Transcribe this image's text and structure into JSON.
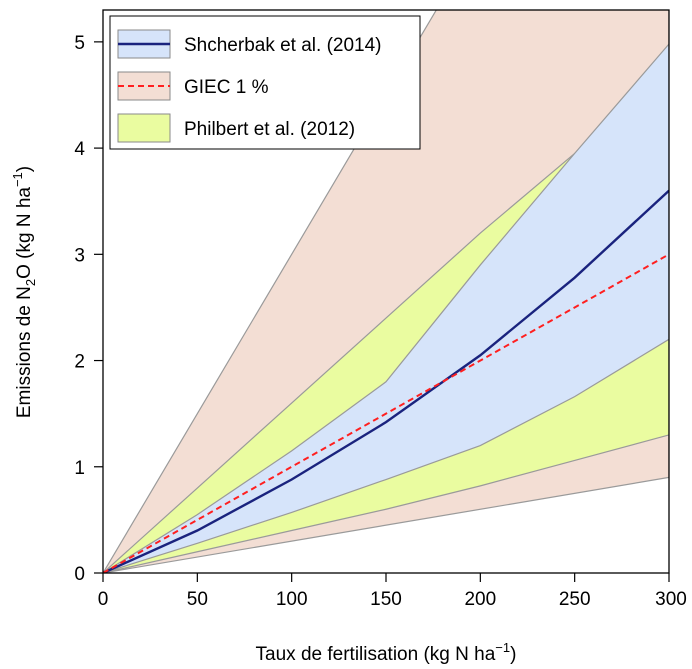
{
  "chart_data": {
    "type": "area",
    "xlabel": "Taux de fertilisation (kg N ha",
    "xlabel_sup": "−1",
    "xlabel_end": ")",
    "ylabel": "Emissions de N",
    "ylabel_sub": "2",
    "ylabel_mid": "O (kg N ha",
    "ylabel_sup": "−1",
    "ylabel_end": ")",
    "xlim": [
      0,
      300
    ],
    "ylim": [
      0,
      5.3
    ],
    "x_ticks": [
      0,
      50,
      100,
      150,
      200,
      250,
      300
    ],
    "x_tick_labels": [
      "0",
      "50",
      "100",
      "150",
      "200",
      "250",
      "300"
    ],
    "y_ticks": [
      0,
      1,
      2,
      3,
      4,
      5
    ],
    "y_tick_labels": [
      "0",
      "1",
      "2",
      "3",
      "4",
      "5"
    ],
    "grid": false,
    "legend_position": "top-left",
    "legend": [
      {
        "label": "Shcherbak et al. (2014)",
        "kind": "line-band",
        "fill": "#d6e4fa",
        "line": "#1a237e"
      },
      {
        "label": "GIEC 1 %",
        "kind": "dashed-band",
        "fill": "#f3ded4",
        "line": "#ff1f1f"
      },
      {
        "label": "Philbert et al. (2012)",
        "kind": "band",
        "fill": "#eafca0"
      }
    ],
    "series": [
      {
        "name": "GIEC 1 %",
        "kind": "band",
        "fill": "#f3ded4",
        "x": [
          0,
          300
        ],
        "lower": [
          0,
          0.9
        ],
        "upper": [
          0,
          9.0
        ]
      },
      {
        "name": "Philbert et al. (2012)",
        "kind": "band",
        "fill": "#eafca0",
        "x": [
          0,
          50,
          100,
          150,
          200,
          250,
          300
        ],
        "lower": [
          0,
          0.2,
          0.4,
          0.6,
          0.82,
          1.06,
          1.3
        ],
        "upper": [
          0,
          0.8,
          1.6,
          2.4,
          3.2,
          3.95,
          4.68
        ]
      },
      {
        "name": "Shcherbak et al. (2014)",
        "kind": "band",
        "fill": "#d6e4fa",
        "x": [
          0,
          50,
          100,
          150,
          200,
          250,
          300
        ],
        "lower": [
          0,
          0.28,
          0.57,
          0.88,
          1.2,
          1.66,
          2.2
        ],
        "upper": [
          0,
          0.55,
          1.15,
          1.8,
          2.9,
          3.95,
          4.98
        ]
      },
      {
        "name": "Shcherbak et al. (2014)",
        "kind": "line",
        "color": "#1a237e",
        "x": [
          0,
          50,
          100,
          150,
          200,
          250,
          300
        ],
        "y": [
          0,
          0.4,
          0.88,
          1.42,
          2.05,
          2.78,
          3.6
        ]
      },
      {
        "name": "GIEC 1 %",
        "kind": "dashed-line",
        "color": "#ff1f1f",
        "x": [
          0,
          300
        ],
        "y": [
          0,
          3.0
        ]
      }
    ]
  }
}
